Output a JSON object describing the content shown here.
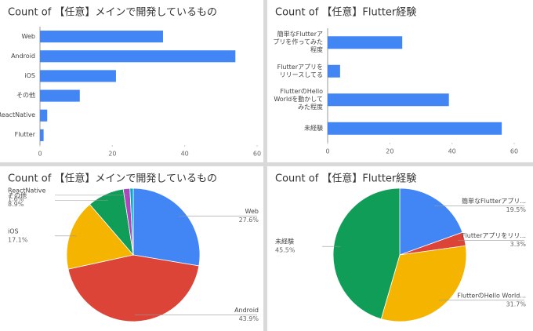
{
  "chart_data": [
    {
      "type": "hbar",
      "title": "Count of 【任意】メインで開発しているもの",
      "categories": [
        "Web",
        "Android",
        "iOS",
        "その他",
        "ReactNative",
        "Flutter"
      ],
      "values": [
        34,
        54,
        21,
        11,
        2,
        1
      ],
      "color": "#4285f4",
      "xlim": [
        0,
        60
      ],
      "xticks": [
        0,
        20,
        40,
        60
      ]
    },
    {
      "type": "hbar",
      "title": "Count of 【任意】Flutter経験",
      "categories": [
        "簡単なFlutterアプリを作ってみた程度",
        "Flutterアプリをリリースしてる",
        "FlutterのHello Worldを動かしてみた程度",
        "未経験"
      ],
      "values": [
        24,
        4,
        39,
        56
      ],
      "color": "#4285f4",
      "xlim": [
        0,
        60
      ],
      "xticks": [
        0,
        20,
        40,
        60
      ]
    },
    {
      "type": "pie",
      "title": "Count of 【任意】メインで開発しているもの",
      "categories": [
        "Web",
        "Android",
        "iOS",
        "その他",
        "ReactNative",
        null
      ],
      "values": [
        27.6,
        43.9,
        17.1,
        8.9,
        1.6,
        0.8
      ],
      "value_labels": [
        "27.6%",
        "43.9%",
        "17.1%",
        "8.9%",
        "1.6%",
        null
      ],
      "colors": [
        "#4285f4",
        "#db4437",
        "#f4b400",
        "#0f9d58",
        "#ab47bc",
        "#00acc1"
      ]
    },
    {
      "type": "pie",
      "title": "Count of 【任意】Flutter経験",
      "categories": [
        "簡単なFlutterアプリ...",
        "Flutterアプリをリリ...",
        "FlutterのHello World...",
        "未経験"
      ],
      "values": [
        19.5,
        3.3,
        31.7,
        45.5
      ],
      "value_labels": [
        "19.5%",
        "3.3%",
        "31.7%",
        "45.5%"
      ],
      "colors": [
        "#4285f4",
        "#db4437",
        "#f4b400",
        "#0f9d58"
      ]
    }
  ]
}
